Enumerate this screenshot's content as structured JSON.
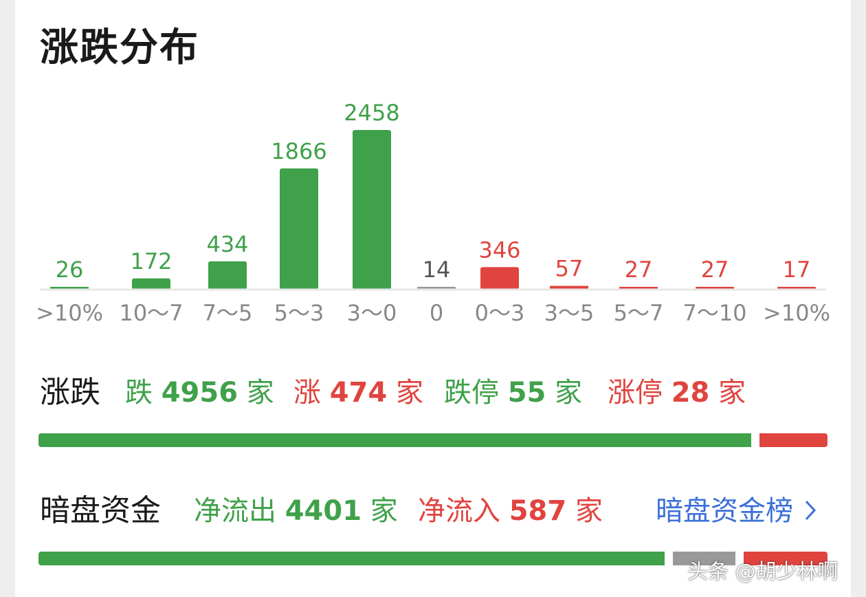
{
  "header": {
    "title": "涨跌分布"
  },
  "colors": {
    "down": "#3fa14a",
    "up": "#e0443f",
    "flat": "#999999",
    "link": "#3b6fd8"
  },
  "chart_data": {
    "type": "bar",
    "categories": [
      ">10%",
      "10～7",
      "7～5",
      "5～3",
      "3～0",
      "0",
      "0～3",
      "3～5",
      "5～7",
      "7～10",
      ">10%"
    ],
    "values": [
      26,
      172,
      434,
      1866,
      2458,
      14,
      346,
      57,
      27,
      27,
      17
    ],
    "value_labels": [
      "26",
      "172",
      "434",
      "1866",
      "2458",
      "14",
      "346",
      "57",
      "27",
      "27",
      "17"
    ],
    "bar_colors": [
      "down",
      "down",
      "down",
      "down",
      "down",
      "flat",
      "up",
      "up",
      "up",
      "up",
      "up"
    ],
    "grid": false
  },
  "breadth": {
    "label": "涨跌",
    "down": {
      "prefix": "跌",
      "value": "4956",
      "suffix": "家"
    },
    "up": {
      "prefix": "涨",
      "value": "474",
      "suffix": "家"
    },
    "limit_down": {
      "prefix": "跌停",
      "value": "55",
      "suffix": "家"
    },
    "limit_up": {
      "prefix": "涨停",
      "value": "28",
      "suffix": "家"
    },
    "ratio": {
      "down": 4956,
      "up": 474
    }
  },
  "dark_pool": {
    "label": "暗盘资金",
    "outflow": {
      "prefix": "净流出",
      "value": "4401",
      "suffix": "家"
    },
    "inflow": {
      "prefix": "净流入",
      "value": "587",
      "suffix": "家"
    },
    "link_label": "暗盘资金榜",
    "link_icon": "chevron-right-icon",
    "ratio": {
      "outflow": 4401,
      "neutral": 442,
      "inflow": 587
    }
  },
  "watermark": "头条 @胡少林啊"
}
